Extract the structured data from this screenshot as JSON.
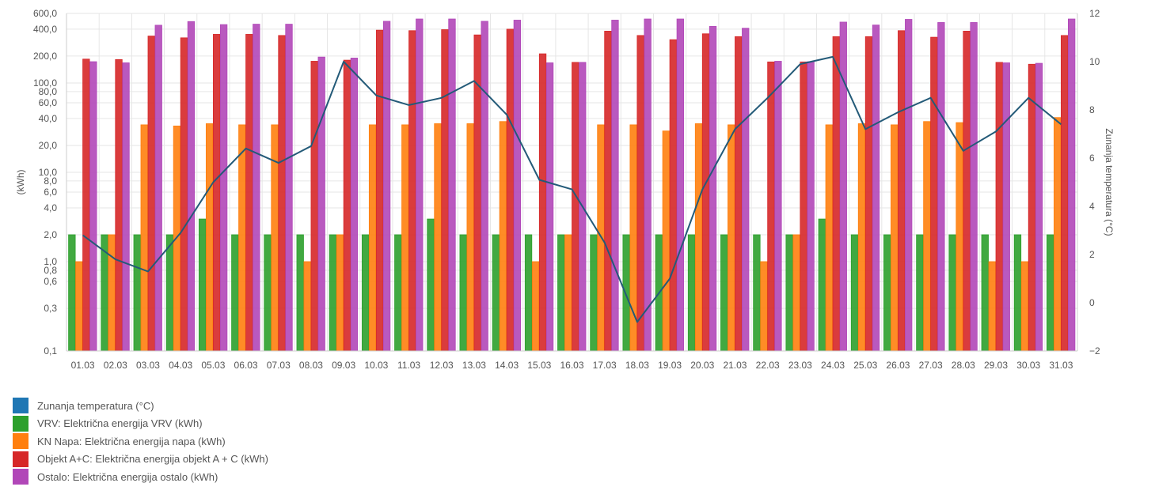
{
  "chart_data": {
    "type": "bar",
    "categories": [
      "01.03",
      "02.03",
      "03.03",
      "04.03",
      "05.03",
      "06.03",
      "07.03",
      "08.03",
      "09.03",
      "10.03",
      "11.03",
      "12.03",
      "13.03",
      "14.03",
      "15.03",
      "16.03",
      "17.03",
      "18.03",
      "19.03",
      "20.03",
      "21.03",
      "22.03",
      "23.03",
      "24.03",
      "25.03",
      "26.03",
      "27.03",
      "28.03",
      "29.03",
      "30.03",
      "31.03"
    ],
    "y_left": {
      "label": "(kWh)",
      "scale": "log",
      "range": [
        0.1,
        600
      ],
      "ticks": [
        {
          "value": 0.1,
          "label": "0,1"
        },
        {
          "value": 0.3,
          "label": "0,3"
        },
        {
          "value": 0.6,
          "label": "0,6"
        },
        {
          "value": 0.8,
          "label": "0,8"
        },
        {
          "value": 1,
          "label": "1,0"
        },
        {
          "value": 2,
          "label": "2,0"
        },
        {
          "value": 4,
          "label": "4,0"
        },
        {
          "value": 6,
          "label": "6,0"
        },
        {
          "value": 8,
          "label": "8,0"
        },
        {
          "value": 10,
          "label": "10,0"
        },
        {
          "value": 20,
          "label": "20,0"
        },
        {
          "value": 40,
          "label": "40,0"
        },
        {
          "value": 60,
          "label": "60,0"
        },
        {
          "value": 80,
          "label": "80,0"
        },
        {
          "value": 100,
          "label": "100,0"
        },
        {
          "value": 200,
          "label": "200,0"
        },
        {
          "value": 400,
          "label": "400,0"
        },
        {
          "value": 600,
          "label": "600,0"
        }
      ]
    },
    "y_right": {
      "label": "Zunanja temperatura (°C)",
      "range": [
        -2,
        12
      ],
      "ticks": [
        -2,
        0,
        2,
        4,
        6,
        8,
        10,
        12
      ]
    },
    "grid": true,
    "legend_position": "bottom-left",
    "series": [
      {
        "name": "Zunanja temperatura (°C)",
        "type": "line",
        "axis": "right",
        "color": "#1f77b4",
        "line_color": "#235a78",
        "values": [
          2.8,
          1.8,
          1.3,
          2.9,
          5.0,
          6.4,
          5.8,
          6.5,
          10.0,
          8.6,
          8.2,
          8.5,
          9.2,
          7.8,
          5.1,
          4.7,
          2.5,
          -0.8,
          1.0,
          4.7,
          7.2,
          8.5,
          9.9,
          10.2,
          7.2,
          7.9,
          8.5,
          6.3,
          7.1,
          8.5,
          7.4
        ]
      },
      {
        "name": "VRV: Električna energija VRV (kWh)",
        "type": "bar",
        "axis": "left",
        "color": "#2ca02c",
        "values": [
          2,
          2,
          2,
          2,
          3,
          2,
          2,
          2,
          2,
          2,
          2,
          3,
          2,
          2,
          2,
          2,
          2,
          2,
          2,
          2,
          2,
          2,
          2,
          3,
          2,
          2,
          2,
          2,
          2,
          2,
          2
        ]
      },
      {
        "name": "KN Napa: Električna energija napa (kWh)",
        "type": "bar",
        "axis": "left",
        "color": "#ff7f0e",
        "values": [
          1,
          2,
          34,
          33,
          35,
          34,
          34,
          1,
          2,
          34,
          34,
          35,
          35,
          37,
          1,
          2,
          34,
          34,
          29,
          35,
          34,
          1,
          2,
          34,
          35,
          34,
          37,
          36,
          1,
          1,
          41
        ]
      },
      {
        "name": "Objekt A+C: Električna energija objekt A + C (kWh)",
        "type": "bar",
        "axis": "left",
        "color": "#d62728",
        "values": [
          185,
          183,
          335,
          320,
          350,
          350,
          340,
          175,
          180,
          390,
          385,
          395,
          345,
          400,
          212,
          170,
          380,
          340,
          305,
          355,
          330,
          172,
          172,
          330,
          330,
          385,
          325,
          380,
          170,
          162,
          340
        ]
      },
      {
        "name": "Ostalo: Električna energija ostalo (kWh)",
        "type": "bar",
        "axis": "left",
        "color": "#b147b8",
        "values": [
          173,
          168,
          443,
          487,
          450,
          455,
          455,
          195,
          190,
          490,
          520,
          520,
          490,
          505,
          168,
          170,
          505,
          520,
          520,
          430,
          410,
          175,
          173,
          480,
          445,
          515,
          475,
          475,
          168,
          166,
          520
        ]
      }
    ]
  },
  "legend": [
    {
      "label": "Zunanja temperatura (°C)",
      "color": "#1f77b4"
    },
    {
      "label": "VRV: Električna energija VRV (kWh)",
      "color": "#2ca02c"
    },
    {
      "label": "KN Napa: Električna energija napa (kWh)",
      "color": "#ff7f0e"
    },
    {
      "label": "Objekt A+C: Električna energija objekt A + C (kWh)",
      "color": "#d62728"
    },
    {
      "label": "Ostalo: Električna energija ostalo (kWh)",
      "color": "#b147b8"
    }
  ]
}
